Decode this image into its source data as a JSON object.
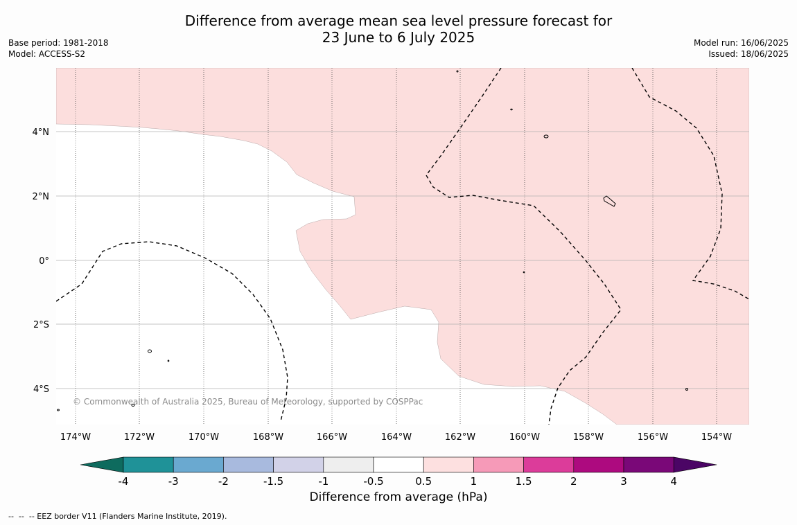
{
  "title": {
    "line1": "Difference from average mean sea level pressure forecast for",
    "line2": "23 June to 6 July 2025"
  },
  "meta": {
    "base_period": "Base period: 1981-2018",
    "model": "Model: ACCESS-S2",
    "model_run": "Model run: 16/06/2025",
    "issued": "Issued: 18/06/2025"
  },
  "map": {
    "lat_labels": [
      "4°N",
      "2°N",
      "0°",
      "2°S",
      "4°S"
    ],
    "lon_labels": [
      "174°W",
      "172°W",
      "170°W",
      "168°W",
      "166°W",
      "164°W",
      "162°W",
      "160°W",
      "158°W",
      "156°W",
      "154°W"
    ],
    "copyright": "© Commonwealth of Australia 2025, Bureau of Meteorology, supported by COSPPac",
    "anomaly_fill_color": "#fcdedd",
    "anomaly_class": "0.5 to 1"
  },
  "colorbar": {
    "title": "Difference from average (hPa)",
    "tick_labels": [
      "-4",
      "-3",
      "-2",
      "-1.5",
      "-1",
      "-0.5",
      "0.5",
      "1",
      "1.5",
      "2",
      "3",
      "4"
    ],
    "colors": [
      "#0e6b5e",
      "#1f9298",
      "#6aa9d0",
      "#a8bade",
      "#d2d2e8",
      "#eeeeee",
      "#ffffff",
      "#fde0e0",
      "#f69ab8",
      "#dc3c9a",
      "#ad0a7f",
      "#7a0878",
      "#4b0565"
    ]
  },
  "footnote": "--  --  -- EEZ border V11 (Flanders Marine Institute, 2019)."
}
